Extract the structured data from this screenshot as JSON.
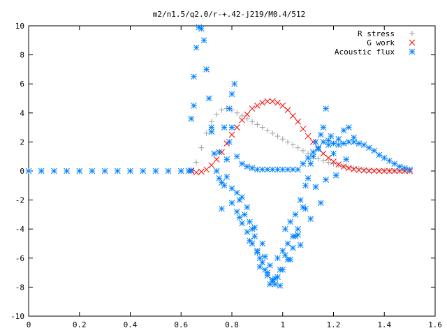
{
  "chart_data": {
    "type": "scatter",
    "title": "m2/n1.5/q2.0/r-+.42-j219/M0.4/512",
    "xlabel": "",
    "ylabel": "",
    "xlim": [
      0,
      1.6
    ],
    "ylim": [
      -10,
      10
    ],
    "xticks": [
      "0",
      "0.2",
      "0.4",
      "0.6",
      "0.8",
      "1",
      "1.2",
      "1.4",
      "1.6"
    ],
    "yticks": [
      "10",
      "8",
      "6",
      "4",
      "2",
      "0",
      "-2",
      "-4",
      "-6",
      "-8",
      "-10"
    ],
    "grid": false,
    "legend_position": "top-right",
    "colors": {
      "r_stress": "#a0a0a0",
      "g_work": "#ff0000",
      "acoustic": "#0080ff"
    },
    "series": [
      {
        "name": "R stress",
        "marker": "plus",
        "x": [
          0.64,
          0.66,
          0.68,
          0.7,
          0.72,
          0.74,
          0.76,
          0.78,
          0.8,
          0.82,
          0.84,
          0.86,
          0.88,
          0.9,
          0.92,
          0.94,
          0.96,
          0.98,
          1.0,
          1.02,
          1.04,
          1.06,
          1.08,
          1.1,
          1.12,
          1.14,
          1.16,
          1.18,
          1.2,
          1.22,
          1.24,
          1.26,
          1.28,
          1.3,
          1.32,
          1.34,
          1.36,
          1.38,
          1.4,
          1.42,
          1.44,
          1.46,
          1.48,
          1.5
        ],
        "y": [
          0.0,
          0.6,
          1.6,
          2.6,
          3.4,
          3.9,
          4.2,
          4.3,
          4.2,
          4.0,
          3.8,
          3.6,
          3.4,
          3.2,
          3.0,
          2.8,
          2.6,
          2.4,
          2.2,
          2.0,
          1.8,
          1.6,
          1.4,
          1.2,
          1.0,
          0.85,
          0.7,
          0.6,
          0.5,
          0.4,
          0.32,
          0.25,
          0.2,
          0.15,
          0.11,
          0.08,
          0.06,
          0.04,
          0.03,
          0.02,
          0.01,
          0.01,
          0.0,
          0.0
        ]
      },
      {
        "name": "G work",
        "marker": "cross",
        "x": [
          0.64,
          0.66,
          0.68,
          0.7,
          0.72,
          0.74,
          0.76,
          0.78,
          0.8,
          0.82,
          0.84,
          0.86,
          0.88,
          0.9,
          0.92,
          0.94,
          0.96,
          0.98,
          1.0,
          1.02,
          1.04,
          1.06,
          1.08,
          1.1,
          1.12,
          1.14,
          1.16,
          1.18,
          1.2,
          1.22,
          1.24,
          1.26,
          1.28,
          1.3,
          1.32,
          1.34,
          1.36,
          1.38,
          1.4,
          1.42,
          1.44,
          1.46,
          1.48,
          1.5
        ],
        "y": [
          0.0,
          -0.1,
          -0.05,
          0.1,
          0.4,
          0.8,
          1.3,
          1.9,
          2.5,
          3.0,
          3.5,
          3.9,
          4.3,
          4.5,
          4.7,
          4.8,
          4.8,
          4.7,
          4.5,
          4.2,
          3.8,
          3.4,
          2.9,
          2.4,
          2.0,
          1.6,
          1.2,
          0.9,
          0.65,
          0.45,
          0.3,
          0.2,
          0.12,
          0.07,
          0.04,
          0.02,
          0.01,
          0.0,
          0.0,
          0.0,
          0.0,
          0.0,
          0.0,
          0.0
        ]
      },
      {
        "name": "Acoustic flux",
        "marker": "star",
        "x": [
          0.0,
          0.05,
          0.1,
          0.15,
          0.2,
          0.25,
          0.3,
          0.35,
          0.4,
          0.45,
          0.5,
          0.55,
          0.6,
          0.63,
          0.64,
          0.65,
          0.66,
          0.67,
          0.68,
          0.69,
          0.7,
          0.71,
          0.72,
          0.73,
          0.74,
          0.75,
          0.76,
          0.77,
          0.78,
          0.79,
          0.8,
          0.82,
          0.84,
          0.86,
          0.88,
          0.9,
          0.92,
          0.94,
          0.96,
          0.98,
          1.0,
          1.02,
          1.04,
          1.06,
          1.08,
          1.1,
          1.12,
          1.14,
          1.16,
          1.18,
          1.2,
          1.22,
          1.24,
          1.26,
          1.28,
          1.3,
          1.32,
          1.34,
          1.36,
          1.38,
          1.4,
          1.42,
          1.44,
          1.46,
          1.48,
          1.5,
          0.64,
          0.65,
          0.72,
          0.75,
          0.77,
          0.79,
          0.8,
          0.81,
          0.82,
          0.83,
          0.84,
          0.85,
          0.86,
          0.87,
          0.88,
          0.89,
          0.9,
          0.91,
          0.92,
          0.93,
          0.94,
          0.95,
          0.96,
          0.97,
          0.98,
          0.99,
          1.0,
          1.01,
          1.02,
          1.03,
          1.04,
          1.05,
          1.06,
          1.07,
          1.08,
          1.09,
          1.1,
          1.11,
          1.12,
          1.13,
          1.14,
          1.15,
          1.16,
          1.17,
          1.18,
          1.19,
          1.2,
          1.22,
          1.24,
          1.26,
          1.28,
          0.8,
          0.82,
          0.84,
          0.86,
          0.88,
          0.9,
          0.92,
          0.94,
          0.96,
          0.98,
          1.0,
          1.02,
          1.04,
          1.06,
          0.83,
          0.87,
          0.91,
          0.95,
          0.99,
          1.03,
          1.07,
          1.11,
          1.15,
          0.89,
          0.93,
          0.97,
          1.01,
          1.05,
          1.09,
          0.8,
          0.78,
          0.76,
          1.13,
          1.17,
          1.21,
          1.25
        ],
        "y": [
          0,
          0,
          0,
          0,
          0,
          0,
          0,
          0,
          0,
          0,
          0,
          0,
          0,
          0,
          0.05,
          4.5,
          8.5,
          9.9,
          9.8,
          9.0,
          7.0,
          5.0,
          3.0,
          1.2,
          0.0,
          -0.5,
          -0.8,
          -1.0,
          0.8,
          2.0,
          3.0,
          1.0,
          0.5,
          0.3,
          0.2,
          0.1,
          0.1,
          0.1,
          0.1,
          0.1,
          0.1,
          0.1,
          0.1,
          0.1,
          0.5,
          0.9,
          1.3,
          1.6,
          2.0,
          2.1,
          1.9,
          1.8,
          1.9,
          2.0,
          2.0,
          1.9,
          1.8,
          1.6,
          1.4,
          1.1,
          0.9,
          0.7,
          0.5,
          0.3,
          0.2,
          0.1,
          3.6,
          6.5,
          2.7,
          1.3,
          3.0,
          4.3,
          5.3,
          6.0,
          -1.5,
          -2.0,
          -1.8,
          -3.0,
          -2.5,
          -3.5,
          -4.0,
          -4.5,
          -5.5,
          -6.0,
          -5.0,
          -6.8,
          -7.2,
          -6.5,
          -7.5,
          -7.8,
          -6.0,
          -6.8,
          -5.5,
          -4.0,
          -5.0,
          -3.5,
          -4.5,
          -3.0,
          -4.0,
          -2.0,
          -2.5,
          -1.0,
          -0.5,
          0.5,
          1.0,
          2.0,
          1.5,
          2.5,
          3.0,
          4.3,
          1.8,
          2.4,
          1.2,
          2.2,
          2.8,
          3.0,
          2.3,
          -2.2,
          -2.8,
          -3.6,
          -4.2,
          -5.0,
          -5.6,
          -6.3,
          -7.0,
          -7.6,
          -7.3,
          -6.8,
          -6.1,
          -5.3,
          -4.4,
          -3.2,
          -4.8,
          -6.6,
          -7.8,
          -7.9,
          -6.1,
          -5.1,
          -3.3,
          -2.2,
          -3.9,
          -5.9,
          -7.4,
          -5.8,
          -4.5,
          -2.6,
          -1.2,
          -0.4,
          -2.6,
          -1.1,
          -0.6,
          -0.3,
          0.8
        ]
      }
    ]
  }
}
